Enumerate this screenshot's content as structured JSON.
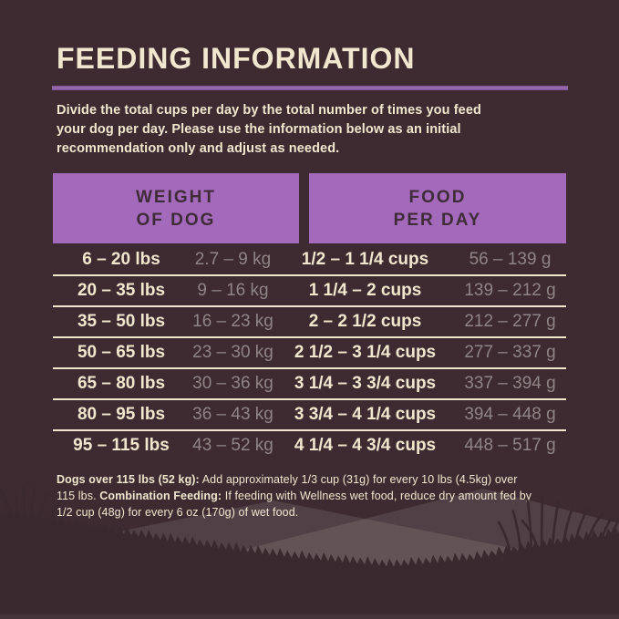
{
  "page": {
    "title": "FEEDING INFORMATION",
    "intro_lines": [
      "Divide the total cups per day by the total number of times you feed",
      "your dog per day. Please use the information below as an initial",
      "recommendation only and adjust as needed."
    ]
  },
  "table": {
    "headers": [
      {
        "line1": "WEIGHT",
        "line2": "OF DOG"
      },
      {
        "line1": "FOOD",
        "line2": "PER DAY"
      }
    ],
    "rows": [
      {
        "lbs": "6 – 20 lbs",
        "kg": "2.7 – 9 kg",
        "cups": "1/2 – 1 1/4 cups",
        "grams": "56 – 139 g"
      },
      {
        "lbs": "20 – 35 lbs",
        "kg": "9 – 16 kg",
        "cups": "1 1/4 – 2 cups",
        "grams": "139 – 212 g"
      },
      {
        "lbs": "35 – 50 lbs",
        "kg": "16 – 23 kg",
        "cups": "2 – 2 1/2 cups",
        "grams": "212 – 277 g"
      },
      {
        "lbs": "50 – 65 lbs",
        "kg": "23 – 30 kg",
        "cups": "2 1/2 – 3 1/4 cups",
        "grams": "277 – 337 g"
      },
      {
        "lbs": "65 – 80 lbs",
        "kg": "30 – 36 kg",
        "cups": "3 1/4 – 3 3/4 cups",
        "grams": "337 – 394 g"
      },
      {
        "lbs": "80 – 95 lbs",
        "kg": "36 – 43 kg",
        "cups": "3 3/4 – 4 1/4 cups",
        "grams": "394 – 448 g"
      },
      {
        "lbs": "95 – 115 lbs",
        "kg": "43 – 52 kg",
        "cups": "4 1/4 – 4 3/4 cups",
        "grams": "448 – 517 g"
      }
    ]
  },
  "notes": {
    "lines": [
      [
        {
          "text": "Dogs over 115 lbs (52 kg):",
          "bold": true
        },
        {
          "text": " Add approximately 1/3 cup (31g) for every 10 lbs (4.5kg) over",
          "bold": false
        }
      ],
      [
        {
          "text": "115 lbs. ",
          "bold": false
        },
        {
          "text": "Combination Feeding:",
          "bold": true
        },
        {
          "text": " If feeding with Wellness wet food, reduce dry amount fed by",
          "bold": false
        }
      ],
      [
        {
          "text": "1/2 cup (48g) for every 6 oz (170g) of wet food.",
          "bold": false
        }
      ]
    ]
  },
  "colors": {
    "background": "#3d2b31",
    "text_cream": "#f1e6ce",
    "text_muted_gray": "#8f8486",
    "purple_header": "#a369bb",
    "purple_rule": "#8a57a0",
    "header_text_dark": "#402c38",
    "hill_overlay": "#5c4b4f",
    "grass_foreground": "#3a292e"
  }
}
